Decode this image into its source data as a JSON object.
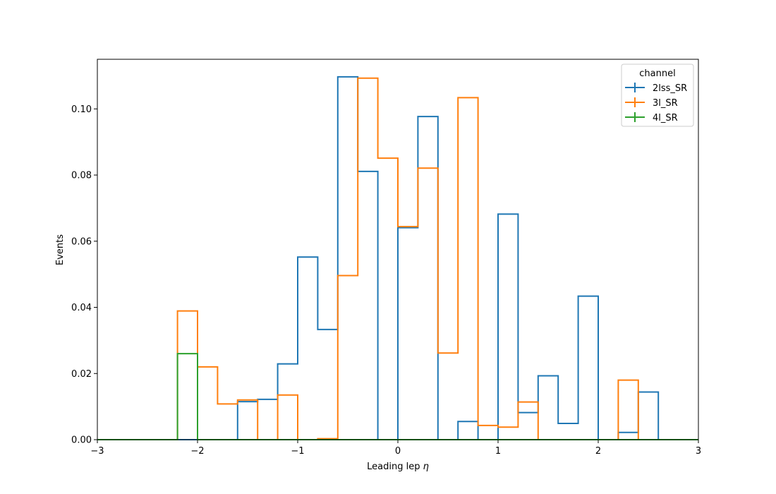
{
  "chart_data": {
    "type": "histogram",
    "xlabel": "Leading lep",
    "xlabel_symbol": "η",
    "ylabel": "Events",
    "xlim": [
      -3,
      3
    ],
    "ylim": [
      0,
      0.115
    ],
    "xticks": [
      -3,
      -2,
      -1,
      0,
      1,
      2,
      3
    ],
    "xtick_labels": [
      "−3",
      "−2",
      "−1",
      "0",
      "1",
      "2",
      "3"
    ],
    "yticks": [
      0.0,
      0.02,
      0.04,
      0.06,
      0.08,
      0.1
    ],
    "ytick_labels": [
      "0.00",
      "0.02",
      "0.04",
      "0.06",
      "0.08",
      "0.10"
    ],
    "bin_edges": [
      -3.0,
      -2.8,
      -2.6,
      -2.4,
      -2.2,
      -2.0,
      -1.8,
      -1.6,
      -1.4,
      -1.2,
      -1.0,
      -0.8,
      -0.6,
      -0.4,
      -0.2,
      0.0,
      0.2,
      0.4,
      0.6,
      0.8,
      1.0,
      1.2,
      1.4,
      1.6,
      1.8,
      2.0,
      2.2,
      2.4,
      2.6,
      2.8,
      3.0
    ],
    "legend": {
      "title": "channel",
      "location": "upper right"
    },
    "series": [
      {
        "name": "2lss_SR",
        "color": "#1f77b4",
        "values": [
          0,
          0,
          0,
          0,
          0,
          0,
          0,
          0.0115,
          0.0122,
          0.0229,
          0.0552,
          0.0333,
          0.1097,
          0.0811,
          0,
          0.0641,
          0.0977,
          0,
          0.0055,
          0,
          0.0682,
          0.0082,
          0.0193,
          0.0049,
          0.0434,
          0,
          0.0022,
          0.0144,
          0,
          0
        ]
      },
      {
        "name": "3l_SR",
        "color": "#ff7f0e",
        "values": [
          0,
          0,
          0,
          0,
          0.0389,
          0.022,
          0.0108,
          0.012,
          0,
          0.0135,
          0,
          0.0003,
          0.0496,
          0.1093,
          0.0851,
          0.0644,
          0.0821,
          0.0262,
          0.1034,
          0.0043,
          0.0038,
          0.0114,
          0,
          0,
          0,
          0,
          0.018,
          0,
          0,
          0
        ]
      },
      {
        "name": "4l_SR",
        "color": "#2ca02c",
        "values": [
          0,
          0,
          0,
          0,
          0.026,
          0,
          0,
          0,
          0,
          0,
          0,
          0,
          0,
          0,
          0,
          0,
          0,
          0,
          0,
          0,
          0,
          0,
          0,
          0,
          0,
          0,
          0,
          0,
          0,
          0
        ]
      }
    ]
  }
}
